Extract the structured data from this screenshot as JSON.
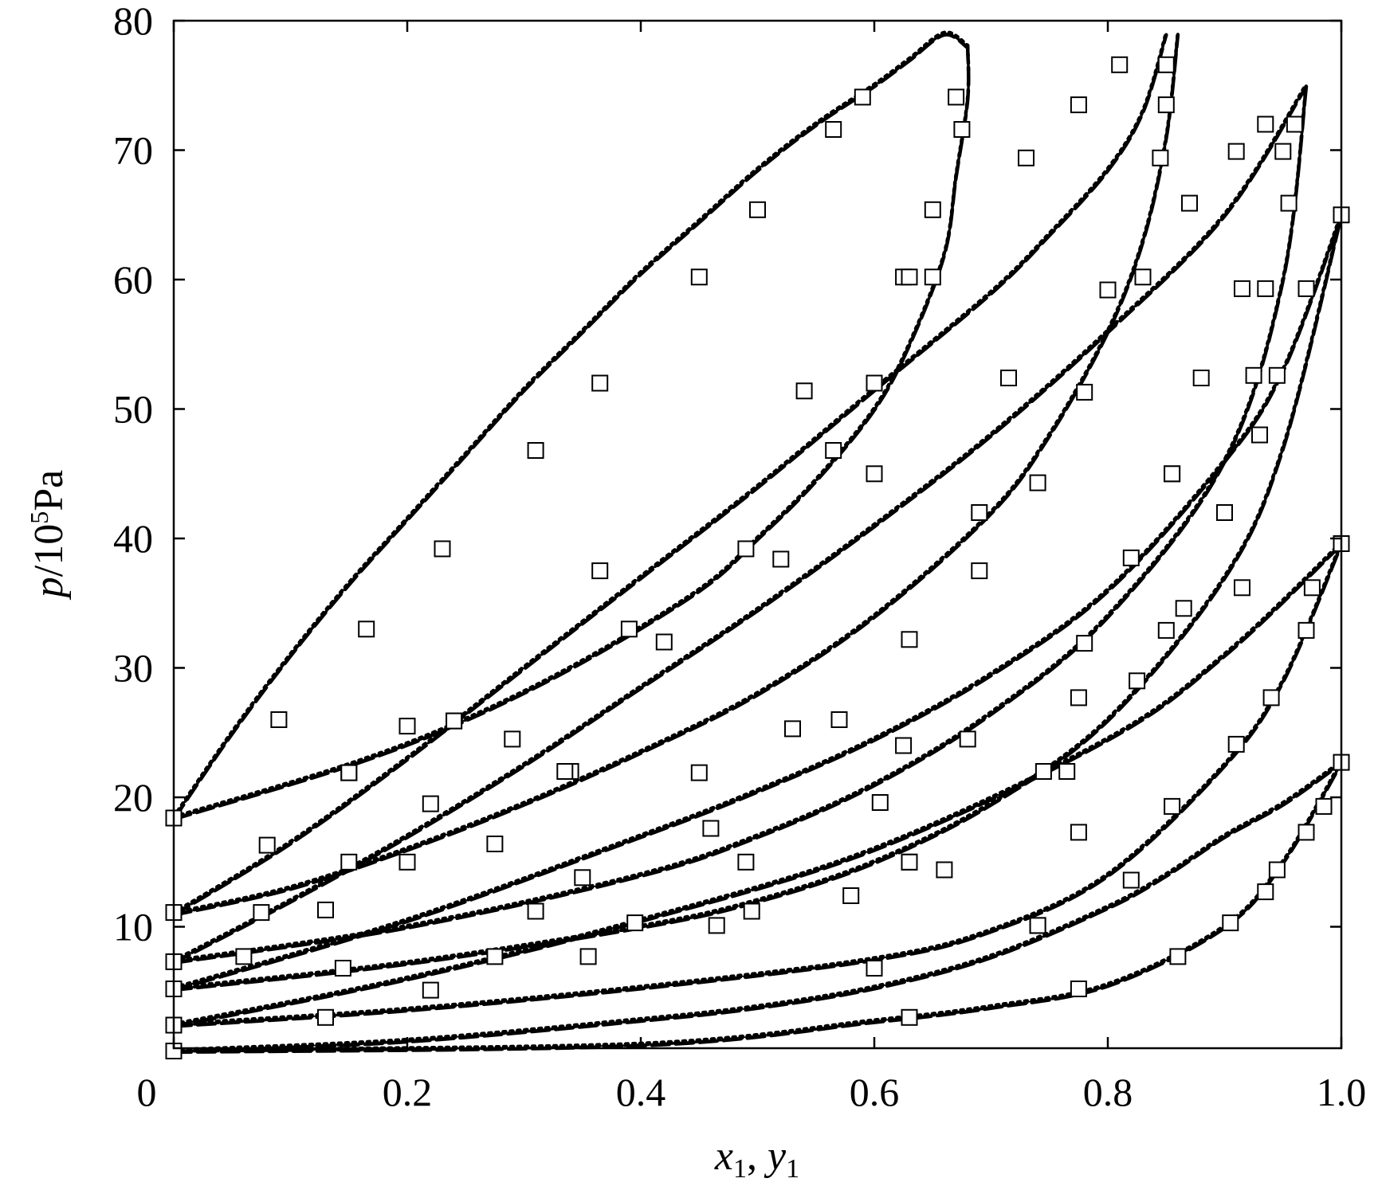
{
  "chart_data": {
    "type": "line",
    "xlabel": {
      "var1": "x",
      "sub1": "1",
      "sep": ", ",
      "var2": "y",
      "sub2": "1"
    },
    "ylabel": {
      "var": "p",
      "rest": "/10",
      "sup": "5",
      "unit": "Pa"
    },
    "xlim": [
      0,
      1.0
    ],
    "ylim": [
      0,
      80
    ],
    "xtick_labels": [
      "0",
      "0.2",
      "0.4",
      "0.6",
      "0.8",
      "1.0"
    ],
    "ytick_labels": [
      "10",
      "20",
      "30",
      "40",
      "50",
      "60",
      "70",
      "80"
    ],
    "xticks": [
      0,
      0.2,
      0.4,
      0.6,
      0.8,
      1.0
    ],
    "yticks": [
      10,
      20,
      30,
      40,
      50,
      60,
      70,
      80
    ],
    "grid": false,
    "legend": "none",
    "line_color": "#000000",
    "line_styles": [
      "solid",
      "dashed",
      "dotted",
      "dash-dot"
    ],
    "envelopes": [
      {
        "y_axis_p": 18.4,
        "y_axis_vp_p": 18.4,
        "bubble": [
          [
            0,
            18.4
          ],
          [
            0.05,
            25
          ],
          [
            0.1,
            31
          ],
          [
            0.15,
            36.5
          ],
          [
            0.2,
            41.5
          ],
          [
            0.25,
            46.5
          ],
          [
            0.3,
            51.5
          ],
          [
            0.35,
            56
          ],
          [
            0.4,
            60.5
          ],
          [
            0.45,
            64.5
          ],
          [
            0.5,
            68.5
          ],
          [
            0.55,
            72
          ],
          [
            0.6,
            75
          ],
          [
            0.63,
            77
          ],
          [
            0.66,
            79
          ],
          [
            0.68,
            78
          ]
        ],
        "dew": [
          [
            0,
            18.4
          ],
          [
            0.15,
            22.5
          ],
          [
            0.25,
            26
          ],
          [
            0.35,
            30.5
          ],
          [
            0.45,
            36
          ],
          [
            0.5,
            40
          ],
          [
            0.55,
            44.5
          ],
          [
            0.6,
            50
          ],
          [
            0.63,
            55
          ],
          [
            0.66,
            62
          ],
          [
            0.67,
            68
          ],
          [
            0.68,
            74
          ],
          [
            0.68,
            78
          ]
        ],
        "points_bubble": [
          [
            0,
            18.4
          ],
          [
            0.09,
            26
          ],
          [
            0.165,
            33
          ],
          [
            0.23,
            39.2
          ],
          [
            0.31,
            46.8
          ],
          [
            0.365,
            52
          ],
          [
            0.45,
            60.2
          ],
          [
            0.5,
            65.4
          ],
          [
            0.565,
            71.6
          ],
          [
            0.59,
            74.1
          ]
        ],
        "points_dew": [
          [
            0.15,
            21.9
          ],
          [
            0.24,
            25.9
          ],
          [
            0.365,
            37.5
          ],
          [
            0.49,
            39.2
          ],
          [
            0.565,
            46.8
          ],
          [
            0.6,
            52
          ],
          [
            0.625,
            60.2
          ],
          [
            0.65,
            65.4
          ],
          [
            0.675,
            71.6
          ],
          [
            0.67,
            74.1
          ]
        ]
      },
      {
        "bubble": [
          [
            0,
            11
          ],
          [
            0.1,
            16.5
          ],
          [
            0.2,
            23
          ],
          [
            0.3,
            30
          ],
          [
            0.4,
            37
          ],
          [
            0.5,
            44
          ],
          [
            0.6,
            51.5
          ],
          [
            0.7,
            59
          ],
          [
            0.75,
            63.5
          ],
          [
            0.8,
            68.5
          ],
          [
            0.83,
            73
          ],
          [
            0.85,
            79
          ]
        ],
        "dew": [
          [
            0,
            11
          ],
          [
            0.1,
            13
          ],
          [
            0.2,
            16
          ],
          [
            0.3,
            19.5
          ],
          [
            0.4,
            23.5
          ],
          [
            0.5,
            28
          ],
          [
            0.6,
            34
          ],
          [
            0.7,
            42
          ],
          [
            0.75,
            48
          ],
          [
            0.8,
            56
          ],
          [
            0.83,
            63
          ],
          [
            0.85,
            71
          ],
          [
            0.86,
            79
          ]
        ],
        "points_bubble": [
          [
            0,
            11.1
          ],
          [
            0.08,
            16.3
          ],
          [
            0.15,
            21.9
          ],
          [
            0.2,
            25.5
          ],
          [
            0.24,
            25.9
          ],
          [
            0.39,
            33
          ],
          [
            0.54,
            51.4
          ],
          [
            0.63,
            60.2
          ],
          [
            0.65,
            60.2
          ],
          [
            0.73,
            69.4
          ],
          [
            0.775,
            73.5
          ],
          [
            0.81,
            76.6
          ]
        ],
        "points_dew": [
          [
            0.15,
            15
          ],
          [
            0.22,
            19.5
          ],
          [
            0.34,
            22
          ],
          [
            0.45,
            21.9
          ],
          [
            0.53,
            25.3
          ],
          [
            0.63,
            32.2
          ],
          [
            0.69,
            37.5
          ],
          [
            0.69,
            42
          ],
          [
            0.74,
            44.3
          ],
          [
            0.78,
            51.3
          ],
          [
            0.83,
            60.2
          ],
          [
            0.845,
            69.4
          ],
          [
            0.85,
            73.5
          ],
          [
            0.85,
            76.6
          ]
        ]
      },
      {
        "bubble": [
          [
            0,
            7.3
          ],
          [
            0.1,
            12
          ],
          [
            0.2,
            17
          ],
          [
            0.3,
            22.5
          ],
          [
            0.4,
            28.5
          ],
          [
            0.5,
            34.5
          ],
          [
            0.6,
            41
          ],
          [
            0.7,
            48
          ],
          [
            0.8,
            56
          ],
          [
            0.9,
            65
          ],
          [
            0.97,
            75
          ]
        ],
        "dew": [
          [
            0,
            7.3
          ],
          [
            0.2,
            10
          ],
          [
            0.4,
            14
          ],
          [
            0.5,
            17
          ],
          [
            0.6,
            21
          ],
          [
            0.7,
            26.5
          ],
          [
            0.8,
            34
          ],
          [
            0.9,
            46
          ],
          [
            0.95,
            60
          ],
          [
            0.97,
            75
          ]
        ],
        "points_bubble": [
          [
            0,
            7.3
          ],
          [
            0.075,
            11.1
          ],
          [
            0.13,
            11.3
          ],
          [
            0.2,
            15
          ],
          [
            0.29,
            24.5
          ],
          [
            0.42,
            32
          ],
          [
            0.52,
            38.4
          ],
          [
            0.6,
            45
          ],
          [
            0.715,
            52.4
          ],
          [
            0.8,
            59.2
          ],
          [
            0.87,
            65.9
          ],
          [
            0.91,
            69.9
          ],
          [
            0.935,
            72
          ]
        ],
        "points_dew": [
          [
            0.06,
            7.7
          ],
          [
            0.145,
            6.8
          ],
          [
            0.275,
            7.7
          ],
          [
            0.355,
            7.7
          ],
          [
            0.465,
            10.1
          ],
          [
            0.495,
            11.2
          ],
          [
            0.58,
            12.4
          ],
          [
            0.66,
            14.4
          ],
          [
            0.745,
            22
          ],
          [
            0.825,
            29
          ],
          [
            0.865,
            34.6
          ],
          [
            0.9,
            42
          ],
          [
            0.93,
            48
          ],
          [
            0.945,
            52.6
          ],
          [
            0.935,
            59.3
          ],
          [
            0.955,
            65.9
          ],
          [
            0.95,
            69.9
          ],
          [
            0.96,
            72
          ]
        ]
      },
      {
        "bubble": [
          [
            0,
            5.2
          ],
          [
            0.2,
            10.5
          ],
          [
            0.4,
            17
          ],
          [
            0.5,
            20.5
          ],
          [
            0.6,
            24.5
          ],
          [
            0.7,
            29.5
          ],
          [
            0.8,
            36
          ],
          [
            0.9,
            46
          ],
          [
            0.95,
            53
          ],
          [
            1.0,
            65
          ]
        ],
        "dew": [
          [
            0,
            5.2
          ],
          [
            0.2,
            7.2
          ],
          [
            0.4,
            10
          ],
          [
            0.5,
            12
          ],
          [
            0.6,
            15
          ],
          [
            0.7,
            19.5
          ],
          [
            0.8,
            26
          ],
          [
            0.9,
            37
          ],
          [
            0.95,
            47
          ],
          [
            1.0,
            65
          ]
        ],
        "points_bubble": [
          [
            0,
            5.2
          ],
          [
            0.275,
            16.4
          ],
          [
            0.335,
            22
          ],
          [
            0.46,
            17.6
          ],
          [
            0.57,
            26
          ],
          [
            0.605,
            19.6
          ],
          [
            0.68,
            24.5
          ],
          [
            0.765,
            22
          ],
          [
            0.855,
            45
          ],
          [
            0.88,
            52.4
          ],
          [
            0.915,
            59.3
          ],
          [
            0.97,
            59.3
          ],
          [
            1.0,
            65
          ]
        ],
        "points_dew": [
          [
            0.13,
            3
          ],
          [
            0.22,
            5.1
          ],
          [
            0.31,
            11.2
          ],
          [
            0.395,
            10.3
          ],
          [
            0.49,
            15
          ],
          [
            0.63,
            15
          ],
          [
            0.74,
            10.1
          ],
          [
            0.78,
            31.9
          ],
          [
            0.82,
            38.5
          ],
          [
            0.855,
            45
          ],
          [
            0.925,
            52.6
          ]
        ]
      },
      {
        "bubble": [
          [
            0,
            2.4
          ],
          [
            0.2,
            6
          ],
          [
            0.4,
            10.5
          ],
          [
            0.6,
            16
          ],
          [
            0.8,
            24.5
          ],
          [
            0.9,
            31
          ],
          [
            1.0,
            39.6
          ]
        ],
        "dew": [
          [
            0,
            2.4
          ],
          [
            0.2,
            3.6
          ],
          [
            0.4,
            5.3
          ],
          [
            0.6,
            7.5
          ],
          [
            0.7,
            9.7
          ],
          [
            0.8,
            14
          ],
          [
            0.9,
            22.5
          ],
          [
            0.95,
            29
          ],
          [
            1.0,
            39.6
          ]
        ],
        "points_bubble": [
          [
            0,
            2.4
          ],
          [
            0.35,
            13.8
          ],
          [
            0.625,
            24
          ],
          [
            0.775,
            27.7
          ],
          [
            0.85,
            32.9
          ],
          [
            0.915,
            36.2
          ],
          [
            0.975,
            36.2
          ],
          [
            1.0,
            39.6
          ]
        ],
        "points_dew": [
          [
            0.6,
            6.8
          ],
          [
            0.74,
            10.1
          ],
          [
            0.82,
            13.6
          ],
          [
            0.91,
            24.1
          ],
          [
            0.94,
            27.7
          ],
          [
            0.97,
            32.9
          ]
        ]
      },
      {
        "bubble": [
          [
            0,
            0.4
          ],
          [
            0.2,
            1.2
          ],
          [
            0.4,
            2.8
          ],
          [
            0.5,
            3.8
          ],
          [
            0.6,
            5.3
          ],
          [
            0.7,
            7.7
          ],
          [
            0.8,
            11.5
          ],
          [
            0.85,
            14
          ],
          [
            0.9,
            17
          ],
          [
            0.95,
            19.5
          ],
          [
            1.0,
            22.7
          ]
        ],
        "dew": [
          [
            0,
            0.4
          ],
          [
            0.4,
            0.9
          ],
          [
            0.6,
            2.7
          ],
          [
            0.7,
            3.8
          ],
          [
            0.8,
            5.5
          ],
          [
            0.9,
            10
          ],
          [
            0.95,
            15
          ],
          [
            1.0,
            22.7
          ]
        ],
        "points_bubble": [
          [
            0,
            0.4
          ],
          [
            0.63,
            15
          ],
          [
            0.775,
            17.3
          ],
          [
            0.855,
            19.3
          ],
          [
            1.0,
            22.7
          ]
        ],
        "points_dew": [
          [
            0.63,
            3
          ],
          [
            0.775,
            5.2
          ],
          [
            0.86,
            7.7
          ],
          [
            0.905,
            10.3
          ],
          [
            0.935,
            12.7
          ],
          [
            0.945,
            14.4
          ],
          [
            0.97,
            17.3
          ],
          [
            0.985,
            19.3
          ]
        ]
      }
    ]
  }
}
